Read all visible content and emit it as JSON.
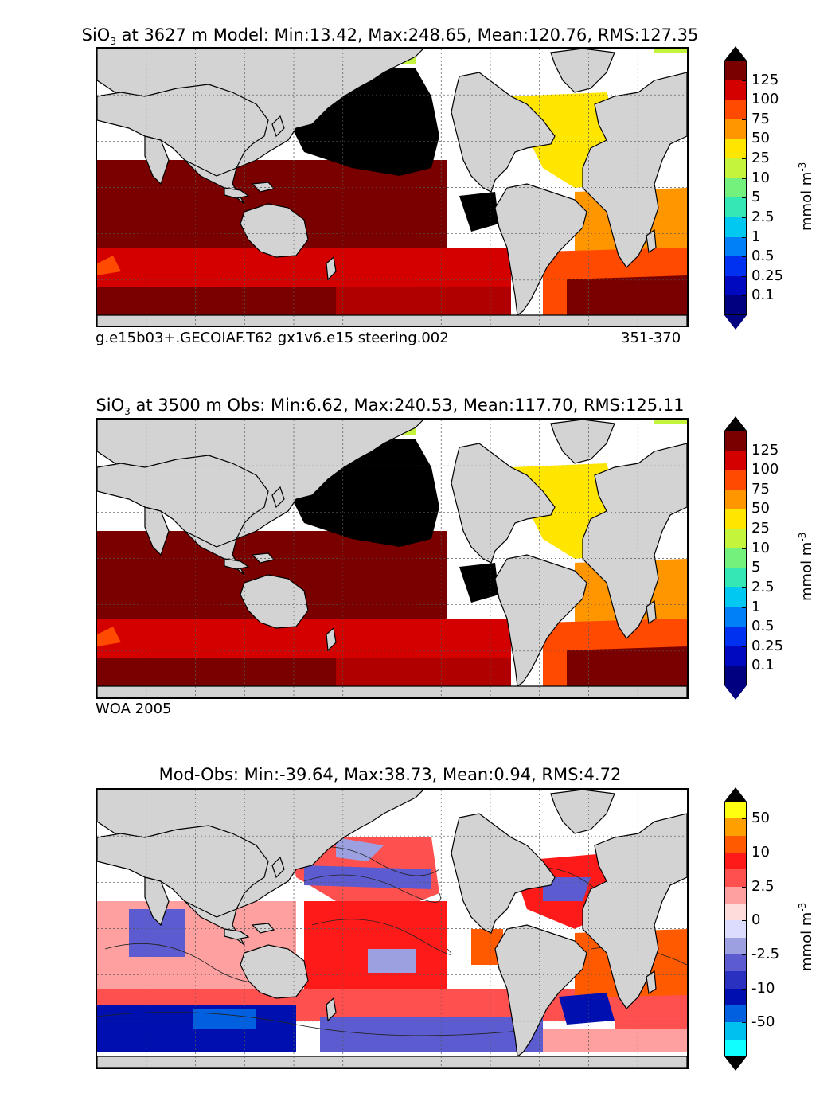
{
  "panels": [
    {
      "title_prefix": "SiO",
      "title_sub": "3",
      "title_rest": " at 3627 m Model: Min:13.42, Max:248.65, Mean:120.76, RMS:127.35",
      "caption_left": "g.e15b03+.GECOIAF.T62 gx1v6.e15 steering.002",
      "caption_right": "351-370",
      "colorbar": {
        "ticks": [
          "125",
          "100",
          "75",
          "50",
          "25",
          "10",
          "5",
          "2.5",
          "1",
          "0.5",
          "0.25",
          "0.1"
        ],
        "colors": [
          "#7a0000",
          "#d40000",
          "#ff4a00",
          "#ff9600",
          "#ffe600",
          "#c4f43c",
          "#74f07c",
          "#34e8b4",
          "#00c8f0",
          "#0080f8",
          "#0030f0",
          "#0008c0",
          "#000080"
        ],
        "over_color": "#000000",
        "under_color": "#000080",
        "unit": "mmol m",
        "unit_sup": "-3"
      }
    },
    {
      "title_prefix": "SiO",
      "title_sub": "3",
      "title_rest": " at 3500 m Obs: Min:6.62, Max:240.53, Mean:117.70, RMS:125.11",
      "caption_left": "WOA 2005",
      "caption_right": "",
      "colorbar": {
        "ticks": [
          "125",
          "100",
          "75",
          "50",
          "25",
          "10",
          "5",
          "2.5",
          "1",
          "0.5",
          "0.25",
          "0.1"
        ],
        "colors": [
          "#7a0000",
          "#d40000",
          "#ff4a00",
          "#ff9600",
          "#ffe600",
          "#c4f43c",
          "#74f07c",
          "#34e8b4",
          "#00c8f0",
          "#0080f8",
          "#0030f0",
          "#0008c0",
          "#000080"
        ],
        "over_color": "#000000",
        "under_color": "#000080",
        "unit": "mmol m",
        "unit_sup": "-3"
      }
    },
    {
      "title_prefix": "",
      "title_sub": "",
      "title_rest": "Mod-Obs: Min:-39.64, Max:38.73, Mean:0.94, RMS:4.72",
      "caption_left": "",
      "caption_right": "",
      "colorbar": {
        "ticks": [
          "50",
          "10",
          "2.5",
          "0",
          "-2.5",
          "-10",
          "-50"
        ],
        "colors": [
          "#ffff10",
          "#ffa000",
          "#ff5a00",
          "#ff1a1a",
          "#ff5050",
          "#ffa0a0",
          "#ffdcdc",
          "#dcdcff",
          "#9ca0e0",
          "#5c5cd0",
          "#2a30c0",
          "#0010b0",
          "#0060e0",
          "#00c0f0",
          "#10ffff"
        ],
        "over_color": "#000000",
        "under_color": "#000000",
        "unit": "mmol m",
        "unit_sup": "-3"
      }
    }
  ]
}
